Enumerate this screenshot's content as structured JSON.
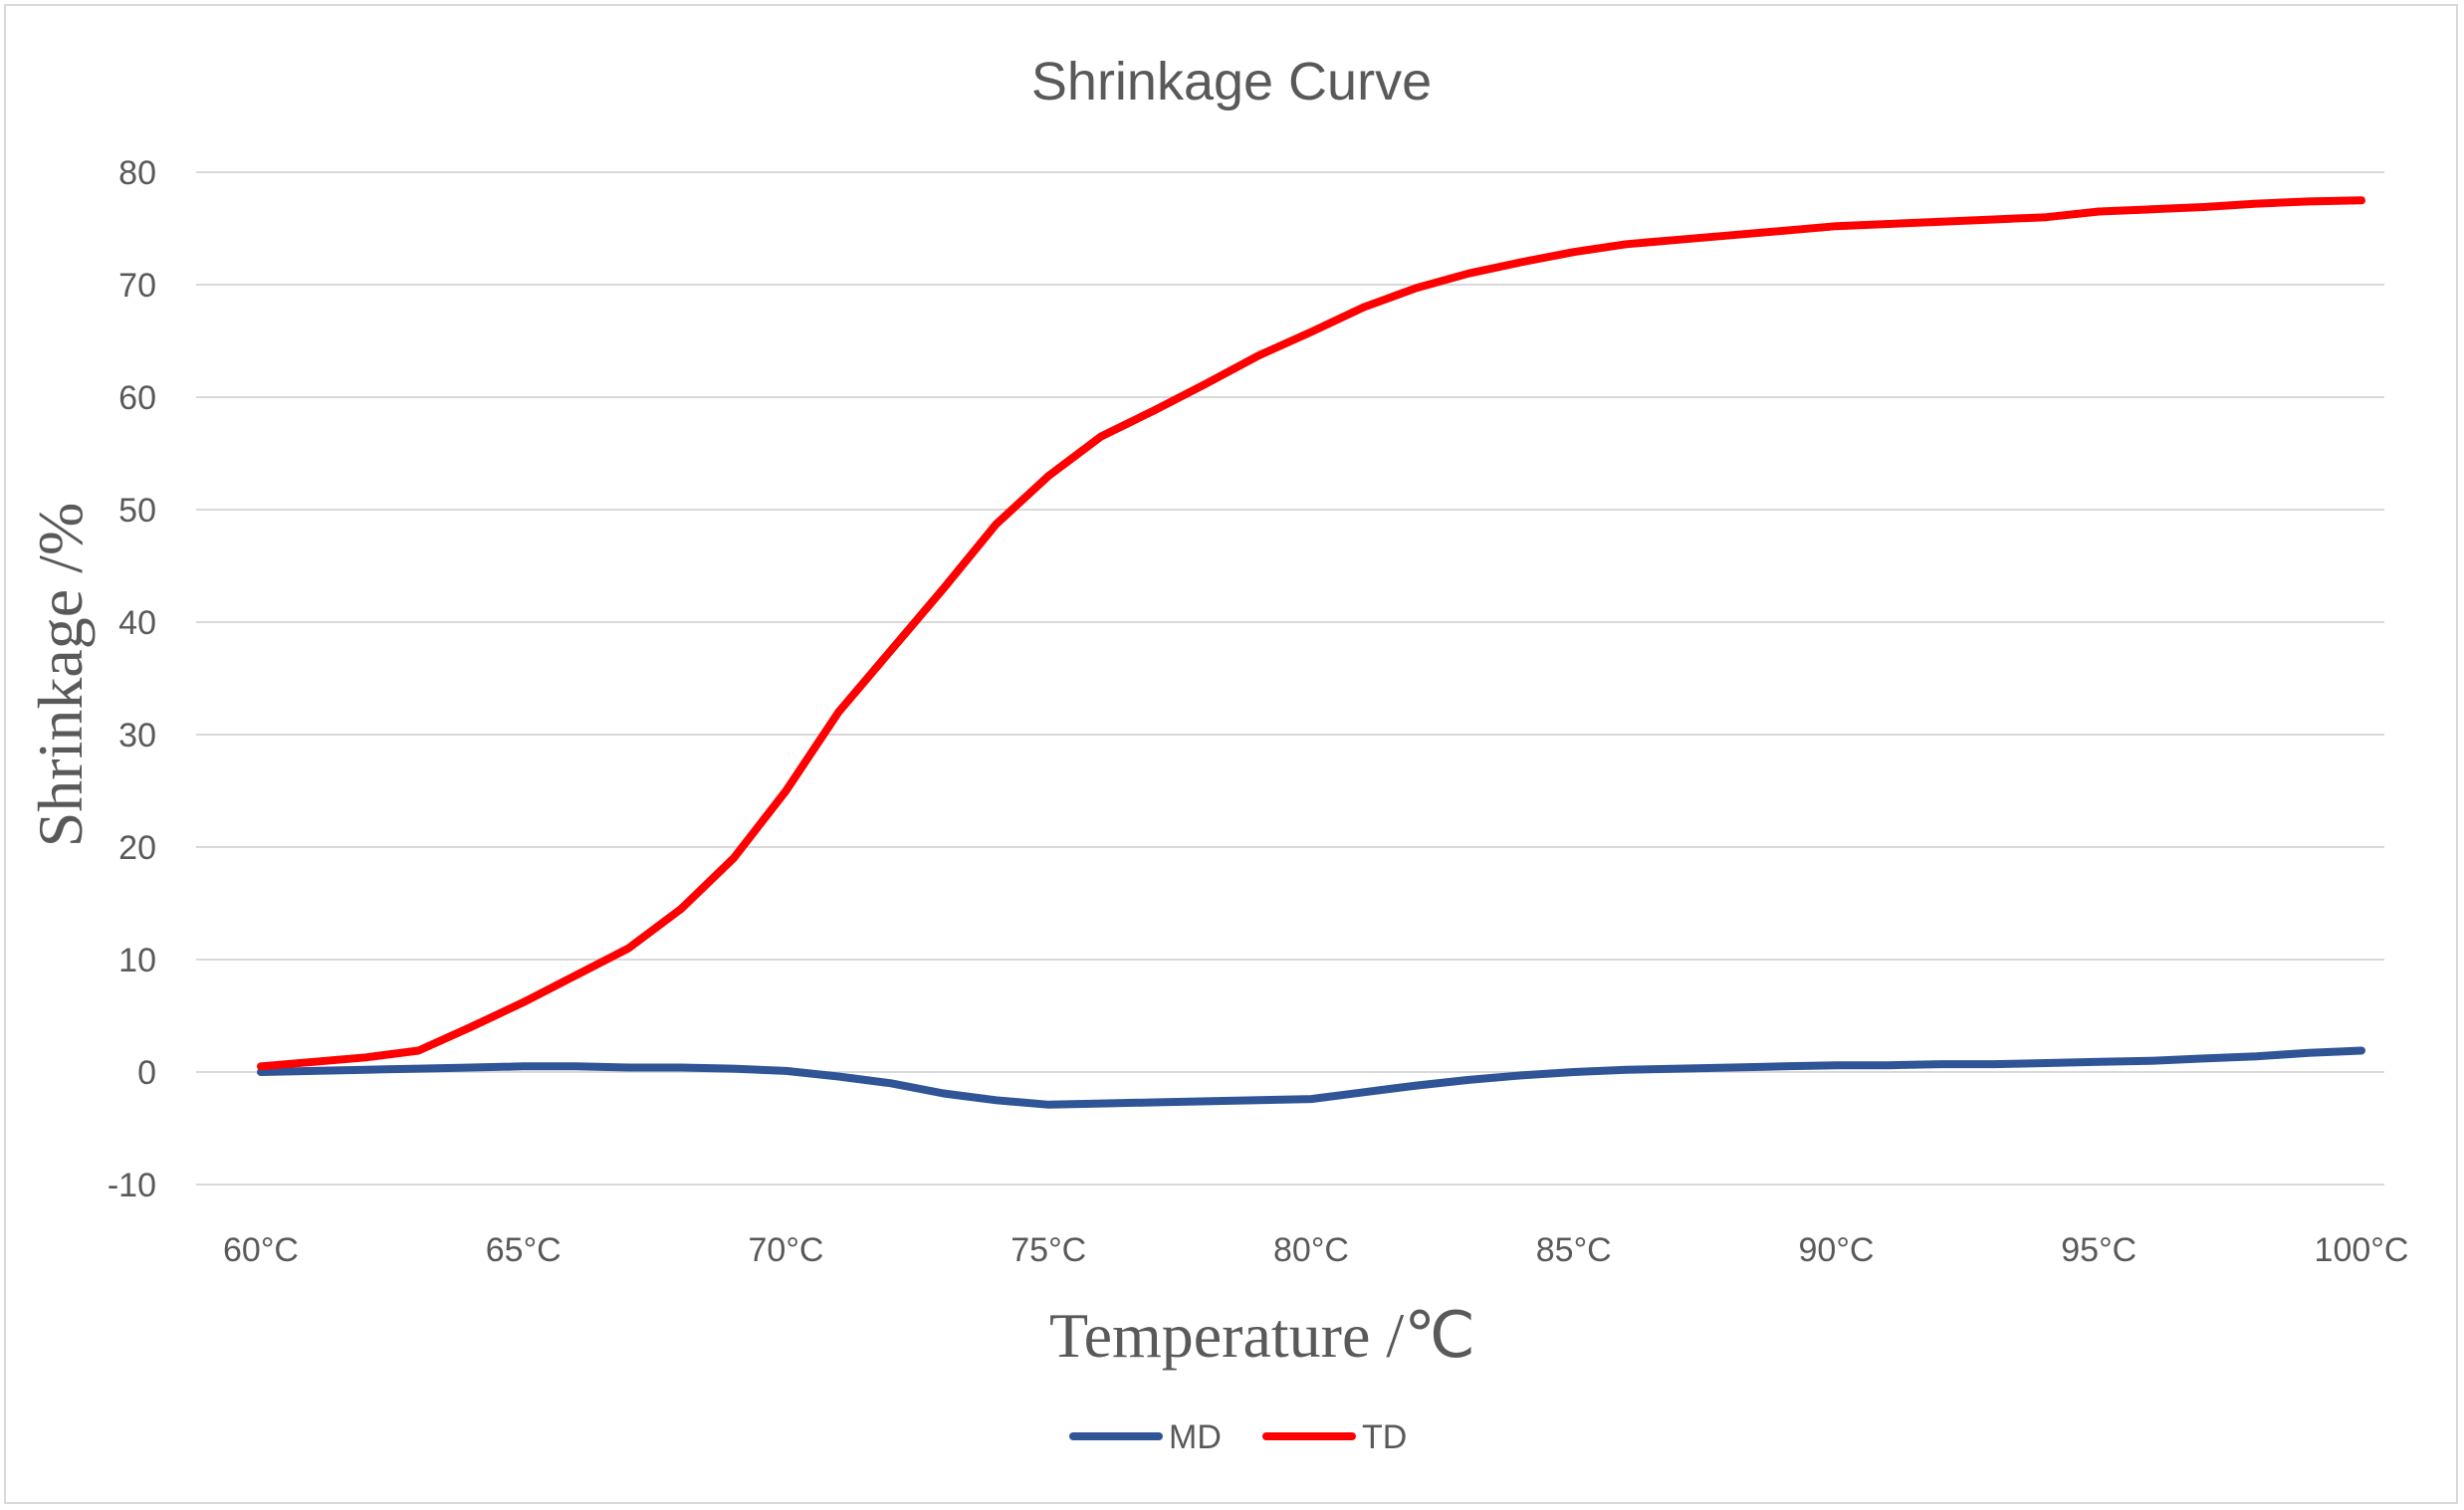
{
  "chart_data": {
    "type": "line",
    "title": "Shrinkage Curve",
    "xlabel": "Temperature /℃",
    "ylabel": "Shrinkage /%",
    "ylim": [
      -10,
      80
    ],
    "yticks": [
      -10,
      0,
      10,
      20,
      30,
      40,
      50,
      60,
      70,
      80
    ],
    "ytick_labels": [
      "-10",
      "0",
      "10",
      "20",
      "30",
      "40",
      "50",
      "60",
      "70",
      "80"
    ],
    "xlim": [
      60,
      100
    ],
    "xtick_values": [
      60,
      65,
      70,
      75,
      80,
      85,
      90,
      95,
      100
    ],
    "xtick_labels": [
      "60°C",
      "65°C",
      "70°C",
      "75°C",
      "80°C",
      "85°C",
      "90°C",
      "95°C",
      "100°C"
    ],
    "grid": true,
    "legend_position": "bottom",
    "x": [
      60,
      61,
      62,
      63,
      64,
      65,
      66,
      67,
      68,
      69,
      70,
      71,
      72,
      73,
      74,
      75,
      76,
      77,
      78,
      79,
      80,
      81,
      82,
      83,
      84,
      85,
      86,
      87,
      88,
      89,
      90,
      91,
      92,
      93,
      94,
      95,
      96,
      97,
      98,
      99,
      100
    ],
    "series": [
      {
        "name": "MD",
        "color": "#2F5597",
        "values": [
          0.0,
          0.1,
          0.2,
          0.3,
          0.4,
          0.5,
          0.5,
          0.4,
          0.4,
          0.3,
          0.1,
          -0.4,
          -1.0,
          -1.9,
          -2.5,
          -2.9,
          -2.8,
          -2.7,
          -2.6,
          -2.5,
          -2.4,
          -1.8,
          -1.2,
          -0.7,
          -0.3,
          0.0,
          0.2,
          0.3,
          0.4,
          0.5,
          0.6,
          0.6,
          0.7,
          0.7,
          0.8,
          0.9,
          1.0,
          1.2,
          1.4,
          1.7,
          1.9
        ]
      },
      {
        "name": "TD",
        "color": "#FF0000",
        "values": [
          0.5,
          0.9,
          1.3,
          1.9,
          4.0,
          6.2,
          8.6,
          11.0,
          14.5,
          19.0,
          25.0,
          32.0,
          37.5,
          43.0,
          48.7,
          53.0,
          56.5,
          58.8,
          61.2,
          63.7,
          65.8,
          68.0,
          69.7,
          71.0,
          72.0,
          72.9,
          73.6,
          74.0,
          74.4,
          74.8,
          75.2,
          75.4,
          75.6,
          75.8,
          76.0,
          76.5,
          76.7,
          76.9,
          77.2,
          77.4,
          77.5
        ]
      }
    ]
  }
}
